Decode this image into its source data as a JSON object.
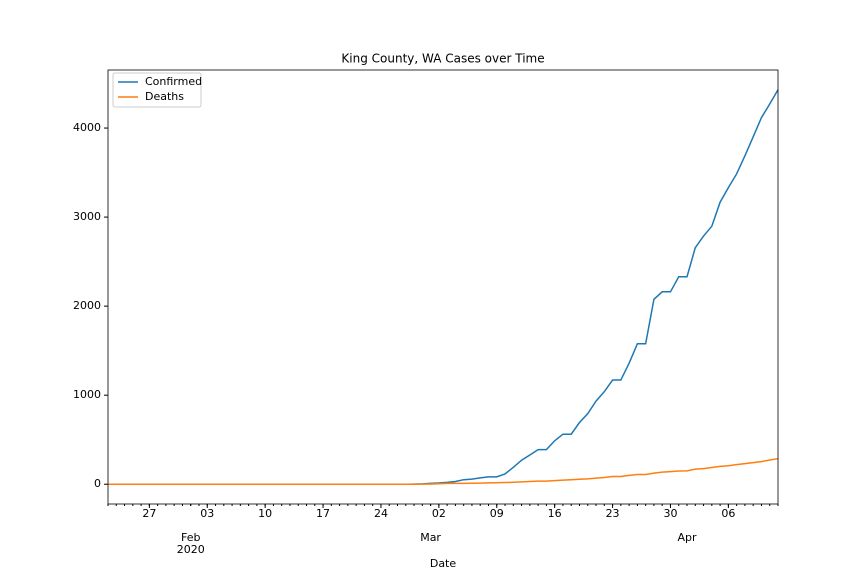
{
  "chart_data": {
    "type": "line",
    "title": "King County, WA Cases over Time",
    "x_label": "Date",
    "x": [
      "2020-01-22",
      "2020-01-23",
      "2020-01-24",
      "2020-01-25",
      "2020-01-26",
      "2020-01-27",
      "2020-01-28",
      "2020-01-29",
      "2020-01-30",
      "2020-01-31",
      "2020-02-01",
      "2020-02-02",
      "2020-02-03",
      "2020-02-04",
      "2020-02-05",
      "2020-02-06",
      "2020-02-07",
      "2020-02-08",
      "2020-02-09",
      "2020-02-10",
      "2020-02-11",
      "2020-02-12",
      "2020-02-13",
      "2020-02-14",
      "2020-02-15",
      "2020-02-16",
      "2020-02-17",
      "2020-02-18",
      "2020-02-19",
      "2020-02-20",
      "2020-02-21",
      "2020-02-22",
      "2020-02-23",
      "2020-02-24",
      "2020-02-25",
      "2020-02-26",
      "2020-02-27",
      "2020-02-28",
      "2020-02-29",
      "2020-03-01",
      "2020-03-02",
      "2020-03-03",
      "2020-03-04",
      "2020-03-05",
      "2020-03-06",
      "2020-03-07",
      "2020-03-08",
      "2020-03-09",
      "2020-03-10",
      "2020-03-11",
      "2020-03-12",
      "2020-03-13",
      "2020-03-14",
      "2020-03-15",
      "2020-03-16",
      "2020-03-17",
      "2020-03-18",
      "2020-03-19",
      "2020-03-20",
      "2020-03-21",
      "2020-03-22",
      "2020-03-23",
      "2020-03-24",
      "2020-03-25",
      "2020-03-26",
      "2020-03-27",
      "2020-03-28",
      "2020-03-29",
      "2020-03-30",
      "2020-03-31",
      "2020-04-01",
      "2020-04-02",
      "2020-04-03",
      "2020-04-04",
      "2020-04-05",
      "2020-04-06",
      "2020-04-07",
      "2020-04-08",
      "2020-04-09",
      "2020-04-10",
      "2020-04-11",
      "2020-04-12"
    ],
    "series": [
      {
        "name": "Confirmed",
        "color": "#1f77b4",
        "values": [
          0,
          0,
          0,
          0,
          0,
          0,
          0,
          0,
          0,
          0,
          0,
          0,
          0,
          0,
          0,
          0,
          0,
          0,
          0,
          0,
          0,
          0,
          0,
          0,
          0,
          0,
          0,
          0,
          0,
          0,
          0,
          0,
          0,
          0,
          0,
          0,
          0,
          1,
          4,
          10,
          14,
          21,
          31,
          51,
          58,
          71,
          83,
          83,
          116,
          190,
          270,
          328,
          388,
          388,
          488,
          562,
          562,
          693,
          793,
          934,
          1040,
          1170,
          1170,
          1359,
          1577,
          1577,
          2077,
          2161,
          2161,
          2330,
          2330,
          2656,
          2787,
          2898,
          3167,
          3331,
          3486,
          3688,
          3902,
          4117,
          4270,
          4430
        ]
      },
      {
        "name": "Deaths",
        "color": "#ff7f0e",
        "values": [
          0,
          0,
          0,
          0,
          0,
          0,
          0,
          0,
          0,
          0,
          0,
          0,
          0,
          0,
          0,
          0,
          0,
          0,
          0,
          0,
          0,
          0,
          0,
          0,
          0,
          0,
          0,
          0,
          0,
          0,
          0,
          0,
          0,
          0,
          0,
          0,
          0,
          0,
          1,
          2,
          5,
          9,
          10,
          10,
          11,
          13,
          15,
          17,
          19,
          22,
          26,
          31,
          35,
          35,
          40,
          46,
          50,
          56,
          60,
          68,
          75,
          87,
          87,
          100,
          109,
          109,
          125,
          136,
          142,
          149,
          150,
          169,
          175,
          188,
          200,
          208,
          220,
          232,
          242,
          254,
          272,
          287
        ]
      }
    ],
    "xlim": [
      "2020-01-22",
      "2020-04-12"
    ],
    "xticks": [
      {
        "value": "2020-01-27",
        "label": "27"
      },
      {
        "value": "2020-02-03",
        "label": "03"
      },
      {
        "value": "2020-02-10",
        "label": "10"
      },
      {
        "value": "2020-02-17",
        "label": "17"
      },
      {
        "value": "2020-02-24",
        "label": "24"
      },
      {
        "value": "2020-03-02",
        "label": "02"
      },
      {
        "value": "2020-03-09",
        "label": "09"
      },
      {
        "value": "2020-03-16",
        "label": "16"
      },
      {
        "value": "2020-03-23",
        "label": "23"
      },
      {
        "value": "2020-03-30",
        "label": "30"
      },
      {
        "value": "2020-04-06",
        "label": "06"
      }
    ],
    "xticks_major": [
      {
        "value": "2020-02-01",
        "label": "Feb\n2020"
      },
      {
        "value": "2020-03-01",
        "label": "Mar"
      },
      {
        "value": "2020-04-01",
        "label": "Apr"
      }
    ],
    "ylim": [
      -222,
      4652
    ],
    "yticks": [
      0,
      1000,
      2000,
      3000,
      4000
    ],
    "grid": false,
    "legend": "upper left"
  }
}
